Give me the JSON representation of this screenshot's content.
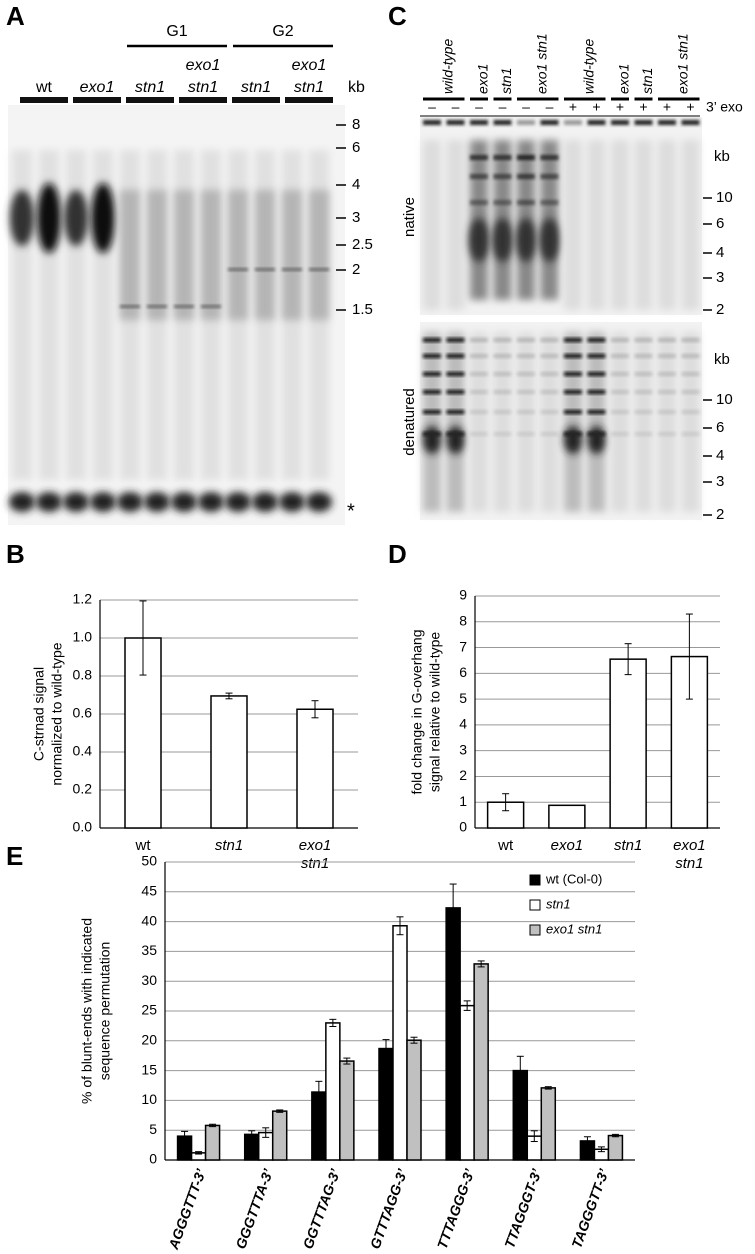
{
  "gels": {
    "A": {
      "panel": "A",
      "groups": [
        "G1",
        "G2"
      ],
      "lanes": [
        [
          "wt"
        ],
        [
          "exo1"
        ],
        [
          "stn1"
        ],
        [
          "exo1",
          "stn1"
        ],
        [
          "stn1"
        ],
        [
          "exo1",
          "stn1"
        ]
      ],
      "unit": "kb",
      "markers": [
        8,
        6,
        4,
        3,
        2.5,
        2,
        1.5
      ],
      "asterisk": "*"
    },
    "C": {
      "panel": "C",
      "lanes": [
        "wild-type",
        "exo1",
        "stn1",
        "exo1 stn1",
        "wild-type",
        "exo1",
        "stn1",
        "exo1 stn1"
      ],
      "signs": [
        "–",
        "–",
        "–",
        "–",
        "–",
        "–",
        "+",
        "+",
        "+",
        "+",
        "+",
        "+"
      ],
      "treatment": "3’ exo",
      "rows": [
        {
          "label": "native",
          "unit": "kb",
          "markers": [
            10,
            6,
            4,
            3,
            2
          ]
        },
        {
          "label": "denatured",
          "unit": "kb",
          "markers": [
            10,
            6,
            4,
            3,
            2
          ]
        }
      ]
    }
  },
  "chart_data": [
    {
      "type": "bar",
      "panel": "B",
      "ylabel": [
        "C-strnad signal",
        "normalized to wild-type"
      ],
      "categories": [
        [
          "wt"
        ],
        [
          "stn1"
        ],
        [
          "exo1",
          "stn1"
        ]
      ],
      "values": [
        1.0,
        0.695,
        0.625
      ],
      "errors": [
        0.195,
        0.015,
        0.045
      ],
      "color": "#ffffff",
      "ylim": [
        0,
        1.2
      ],
      "yticks": [
        {
          "value": 0,
          "label": "0.0"
        },
        0.2,
        0.4,
        0.6,
        0.8,
        {
          "value": 1,
          "label": "1.0"
        },
        1.2
      ],
      "grid": true
    },
    {
      "type": "bar",
      "panel": "D",
      "ylabel": [
        "fold change in G-overhang",
        "signal relative to wild-type"
      ],
      "categories": [
        [
          "wt"
        ],
        [
          "exo1"
        ],
        [
          "stn1"
        ],
        [
          "exo1",
          "stn1"
        ]
      ],
      "values": [
        1.0,
        0.88,
        6.55,
        6.65
      ],
      "errors": [
        0.33,
        null,
        0.6,
        1.65
      ],
      "color": "#ffffff",
      "ylim": [
        0,
        9
      ],
      "yticks": [
        0,
        1,
        2,
        3,
        4,
        5,
        6,
        7,
        8,
        9
      ],
      "grid": true
    },
    {
      "type": "grouped-bar",
      "panel": "E",
      "ylabel": [
        "% of blunt-ends with indicated",
        "sequence permutation"
      ],
      "categories": [
        [
          "AGGGTTT-3’"
        ],
        [
          "GGGTTTA-3’"
        ],
        [
          "GGTTTAG-3’"
        ],
        [
          "GTTTAGG-3’"
        ],
        [
          "TTTAGGG-3’"
        ],
        [
          "TTAGGGT-3’"
        ],
        [
          "TAGGGTT-3’"
        ]
      ],
      "series": [
        {
          "name": "wt (Col-0)",
          "color": "#000000",
          "values": [
            4,
            4.3,
            11.4,
            18.7,
            42.3,
            15,
            3.2
          ],
          "errors": [
            0.8,
            0.6,
            1.8,
            1.5,
            4,
            2.4,
            0.7
          ]
        },
        {
          "name": "stn1",
          "color": "#ffffff",
          "values": [
            1.2,
            4.6,
            23,
            39.3,
            25.9,
            4,
            1.8
          ],
          "errors": [
            0.2,
            0.8,
            0.6,
            1.5,
            0.8,
            0.9,
            0.4
          ]
        },
        {
          "name": "exo1 stn1",
          "color": "#c0c0c0",
          "values": [
            5.8,
            8.2,
            16.6,
            20.1,
            32.9,
            12.1,
            4.1
          ],
          "errors": [
            0.2,
            0.2,
            0.5,
            0.5,
            0.5,
            0.2,
            0.2
          ]
        }
      ],
      "ylim": [
        0,
        50
      ],
      "yticks": [
        0,
        5,
        10,
        15,
        20,
        25,
        30,
        35,
        40,
        45,
        50
      ],
      "grid": true,
      "legend": "top-right"
    }
  ]
}
